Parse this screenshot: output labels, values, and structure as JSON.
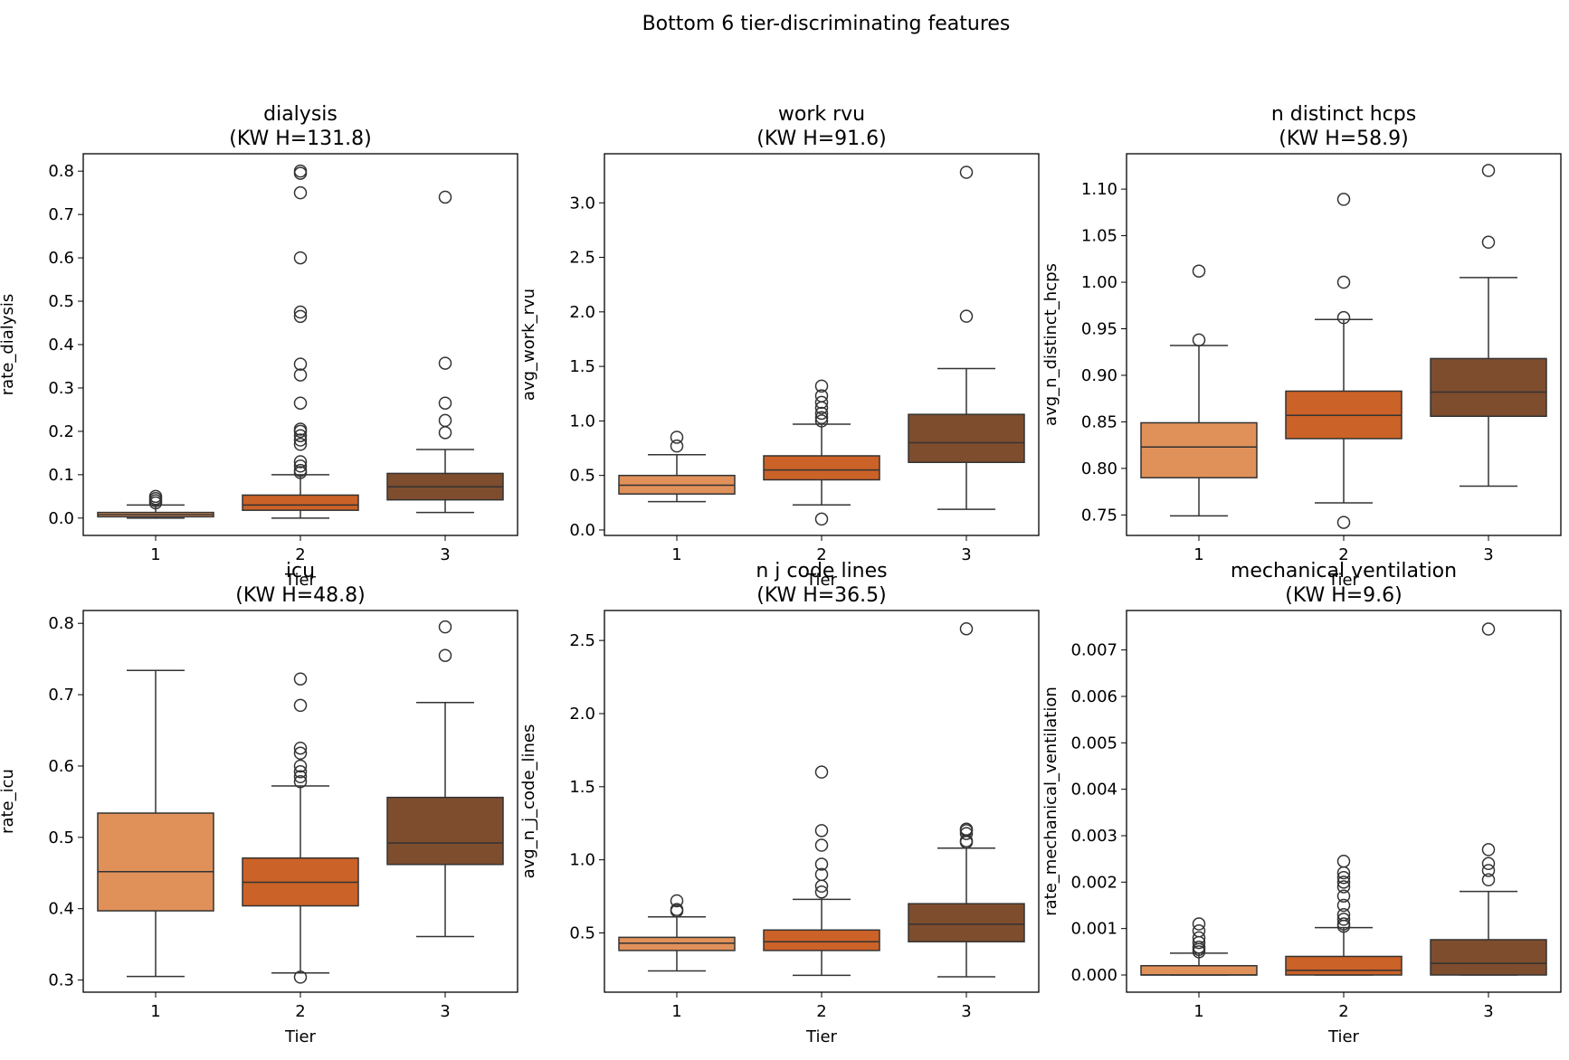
{
  "title": "Bottom 6 tier-discriminating features",
  "colors": {
    "tier1": "#E0915A",
    "tier2": "#CB6227",
    "tier3": "#7E4D2E",
    "line": "#333333"
  },
  "chart_data": [
    {
      "type": "box",
      "title": "dialysis",
      "subtitle": "(KW H=131.8)",
      "xlabel": "Tier",
      "ylabel": "rate_dialysis",
      "categories": [
        "1",
        "2",
        "3"
      ],
      "ylim": [
        -0.04,
        0.84
      ],
      "yticks": [
        0.0,
        0.1,
        0.2,
        0.3,
        0.4,
        0.5,
        0.6,
        0.7,
        0.8
      ],
      "tick_labels": [
        "0.0",
        "0.1",
        "0.2",
        "0.3",
        "0.4",
        "0.5",
        "0.6",
        "0.7",
        "0.8"
      ],
      "boxes": [
        {
          "q1": 0.003,
          "median": 0.008,
          "q3": 0.013,
          "whislo": 0.0,
          "whishi": 0.03,
          "fliers": [
            0.035,
            0.04,
            0.045,
            0.05
          ]
        },
        {
          "q1": 0.018,
          "median": 0.03,
          "q3": 0.053,
          "whislo": 0.0,
          "whishi": 0.1,
          "fliers": [
            0.105,
            0.11,
            0.12,
            0.13,
            0.17,
            0.18,
            0.19,
            0.2,
            0.205,
            0.265,
            0.33,
            0.355,
            0.465,
            0.475,
            0.6,
            0.75,
            0.795,
            0.8
          ]
        },
        {
          "q1": 0.042,
          "median": 0.072,
          "q3": 0.103,
          "whislo": 0.013,
          "whishi": 0.158,
          "fliers": [
            0.197,
            0.225,
            0.265,
            0.357,
            0.74
          ]
        }
      ]
    },
    {
      "type": "box",
      "title": "work rvu",
      "subtitle": "(KW H=91.6)",
      "xlabel": "Tier",
      "ylabel": "avg_work_rvu",
      "categories": [
        "1",
        "2",
        "3"
      ],
      "ylim": [
        -0.05,
        3.45
      ],
      "yticks": [
        0.0,
        0.5,
        1.0,
        1.5,
        2.0,
        2.5,
        3.0
      ],
      "tick_labels": [
        "0.0",
        "0.5",
        "1.0",
        "1.5",
        "2.0",
        "2.5",
        "3.0"
      ],
      "boxes": [
        {
          "q1": 0.33,
          "median": 0.41,
          "q3": 0.5,
          "whislo": 0.26,
          "whishi": 0.69,
          "fliers": [
            0.77,
            0.85
          ]
        },
        {
          "q1": 0.46,
          "median": 0.55,
          "q3": 0.68,
          "whislo": 0.23,
          "whishi": 0.97,
          "fliers": [
            0.1,
            1.0,
            1.03,
            1.07,
            1.12,
            1.17,
            1.23,
            1.32
          ]
        },
        {
          "q1": 0.62,
          "median": 0.8,
          "q3": 1.06,
          "whislo": 0.19,
          "whishi": 1.48,
          "fliers": [
            1.96,
            3.28
          ]
        }
      ]
    },
    {
      "type": "box",
      "title": "n distinct hcps",
      "subtitle": "(KW H=58.9)",
      "xlabel": "Tier",
      "ylabel": "avg_n_distinct_hcps",
      "categories": [
        "1",
        "2",
        "3"
      ],
      "ylim": [
        0.728,
        1.138
      ],
      "yticks": [
        0.75,
        0.8,
        0.85,
        0.9,
        0.95,
        1.0,
        1.05,
        1.1
      ],
      "tick_labels": [
        "0.75",
        "0.80",
        "0.85",
        "0.90",
        "0.95",
        "1.00",
        "1.05",
        "1.10"
      ],
      "boxes": [
        {
          "q1": 0.79,
          "median": 0.823,
          "q3": 0.849,
          "whislo": 0.749,
          "whishi": 0.932,
          "fliers": [
            0.938,
            1.012
          ]
        },
        {
          "q1": 0.832,
          "median": 0.857,
          "q3": 0.883,
          "whislo": 0.763,
          "whishi": 0.96,
          "fliers": [
            0.742,
            0.962,
            1.0,
            1.089
          ]
        },
        {
          "q1": 0.856,
          "median": 0.882,
          "q3": 0.918,
          "whislo": 0.781,
          "whishi": 1.005,
          "fliers": [
            1.043,
            1.12
          ]
        }
      ]
    },
    {
      "type": "box",
      "title": "icu",
      "subtitle": "(KW H=48.8)",
      "xlabel": "Tier",
      "ylabel": "rate_icu",
      "categories": [
        "1",
        "2",
        "3"
      ],
      "ylim": [
        0.283,
        0.818
      ],
      "yticks": [
        0.3,
        0.4,
        0.5,
        0.6,
        0.7,
        0.8
      ],
      "tick_labels": [
        "0.3",
        "0.4",
        "0.5",
        "0.6",
        "0.7",
        "0.8"
      ],
      "boxes": [
        {
          "q1": 0.397,
          "median": 0.452,
          "q3": 0.534,
          "whislo": 0.305,
          "whishi": 0.734,
          "fliers": []
        },
        {
          "q1": 0.404,
          "median": 0.437,
          "q3": 0.471,
          "whislo": 0.31,
          "whishi": 0.572,
          "fliers": [
            0.304,
            0.578,
            0.585,
            0.592,
            0.6,
            0.618,
            0.625,
            0.685,
            0.722
          ]
        },
        {
          "q1": 0.462,
          "median": 0.492,
          "q3": 0.556,
          "whislo": 0.361,
          "whishi": 0.689,
          "fliers": [
            0.755,
            0.795
          ]
        }
      ]
    },
    {
      "type": "box",
      "title": "n j code lines",
      "subtitle": "(KW H=36.5)",
      "xlabel": "Tier",
      "ylabel": "avg_n_j_code_lines",
      "categories": [
        "1",
        "2",
        "3"
      ],
      "ylim": [
        0.095,
        2.705
      ],
      "yticks": [
        0.5,
        1.0,
        1.5,
        2.0,
        2.5
      ],
      "tick_labels": [
        "0.5",
        "1.0",
        "1.5",
        "2.0",
        "2.5"
      ],
      "boxes": [
        {
          "q1": 0.38,
          "median": 0.43,
          "q3": 0.47,
          "whislo": 0.24,
          "whishi": 0.61,
          "fliers": [
            0.65,
            0.66,
            0.72
          ]
        },
        {
          "q1": 0.38,
          "median": 0.44,
          "q3": 0.52,
          "whislo": 0.21,
          "whishi": 0.73,
          "fliers": [
            0.78,
            0.82,
            0.9,
            0.97,
            1.1,
            1.2,
            1.6
          ]
        },
        {
          "q1": 0.44,
          "median": 0.56,
          "q3": 0.7,
          "whislo": 0.2,
          "whishi": 1.08,
          "fliers": [
            1.12,
            1.13,
            1.18,
            1.2,
            1.21,
            2.58
          ]
        }
      ]
    },
    {
      "type": "box",
      "title": "mechanical ventilation",
      "subtitle": "(KW H=9.6)",
      "xlabel": "Tier",
      "ylabel": "rate_mechanical_ventilation",
      "categories": [
        "1",
        "2",
        "3"
      ],
      "ylim": [
        -0.00037,
        0.00785
      ],
      "yticks": [
        0.0,
        0.001,
        0.002,
        0.003,
        0.004,
        0.005,
        0.006,
        0.007
      ],
      "tick_labels": [
        "0.000",
        "0.001",
        "0.002",
        "0.003",
        "0.004",
        "0.005",
        "0.006",
        "0.007"
      ],
      "boxes": [
        {
          "q1": 0.0,
          "median": 0.0,
          "q3": 0.0002,
          "whislo": 0.0,
          "whishi": 0.00047,
          "fliers": [
            0.0005,
            0.00055,
            0.0006,
            0.0007,
            0.0008,
            0.00095,
            0.0011
          ]
        },
        {
          "q1": 0.0,
          "median": 0.0001,
          "q3": 0.0004,
          "whislo": 0.0,
          "whishi": 0.00102,
          "fliers": [
            0.00105,
            0.0011,
            0.0012,
            0.0013,
            0.0015,
            0.0017,
            0.0019,
            0.002,
            0.0021,
            0.0022,
            0.00245
          ]
        },
        {
          "q1": 0.0,
          "median": 0.00025,
          "q3": 0.00076,
          "whislo": 0.0,
          "whishi": 0.0018,
          "fliers": [
            0.00205,
            0.00225,
            0.0024,
            0.0027,
            0.00745
          ]
        }
      ]
    }
  ]
}
